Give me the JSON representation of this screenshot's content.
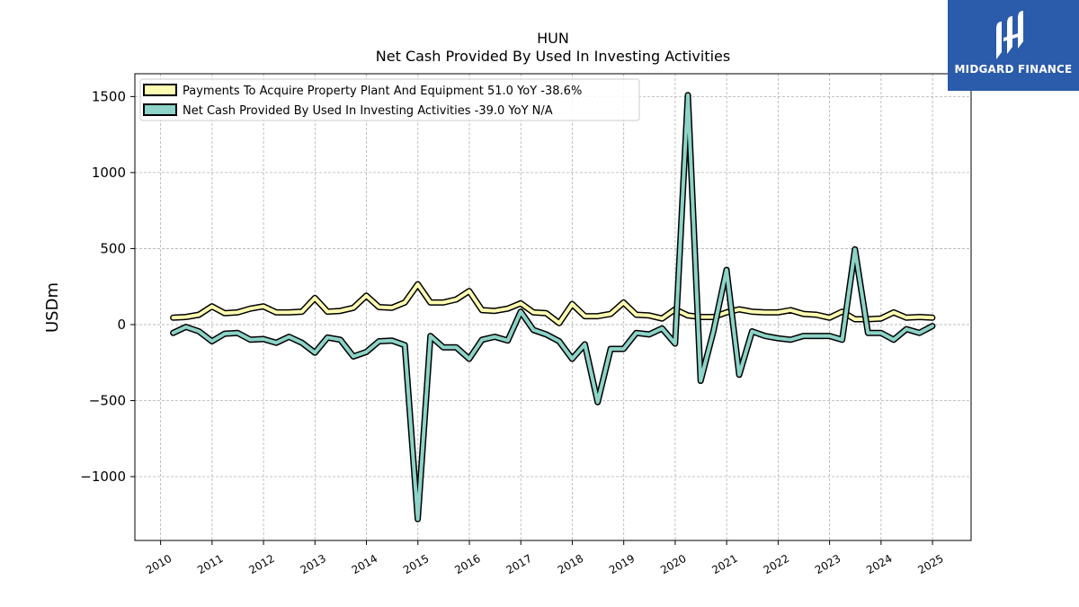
{
  "chart_data": {
    "type": "line",
    "title": "HUN",
    "subtitle": "Net Cash Provided By Used In Investing Activities",
    "xlabel": "",
    "ylabel": "USDm",
    "xlim": [
      2009.5,
      2025.75
    ],
    "ylim": [
      -1420,
      1650
    ],
    "yticks": [
      -1000,
      -500,
      0,
      500,
      1000,
      1500
    ],
    "ytick_labels": [
      "−1000",
      "−500",
      "0",
      "500",
      "1000",
      "1500"
    ],
    "xticks": [
      2010,
      2011,
      2012,
      2013,
      2014,
      2015,
      2016,
      2017,
      2018,
      2019,
      2020,
      2021,
      2022,
      2023,
      2024,
      2025
    ],
    "xtick_labels": [
      "2010",
      "2011",
      "2012",
      "2013",
      "2014",
      "2015",
      "2016",
      "2017",
      "2018",
      "2019",
      "2020",
      "2021",
      "2022",
      "2023",
      "2024",
      "2025"
    ],
    "grid": true,
    "legend_position": "top-left",
    "series": [
      {
        "name": "Payments To Acquire Property Plant And Equipment",
        "legend_label": "Payments To Acquire Property Plant And Equipment  51.0 YoY -38.6%",
        "color": "#ffffb3",
        "x": [
          "2010-03-31",
          "2010-06-30",
          "2010-09-30",
          "2010-12-31",
          "2011-03-31",
          "2011-06-30",
          "2011-09-30",
          "2011-12-31",
          "2012-03-31",
          "2012-06-30",
          "2012-09-30",
          "2012-12-31",
          "2013-03-31",
          "2013-06-30",
          "2013-09-30",
          "2013-12-31",
          "2014-03-31",
          "2014-06-30",
          "2014-09-30",
          "2014-12-31",
          "2015-03-31",
          "2015-06-30",
          "2015-09-30",
          "2015-12-31",
          "2016-03-31",
          "2016-06-30",
          "2016-09-30",
          "2016-12-31",
          "2017-03-31",
          "2017-06-30",
          "2017-09-30",
          "2017-12-31",
          "2018-03-31",
          "2018-06-30",
          "2018-09-30",
          "2018-12-31",
          "2019-03-31",
          "2019-06-30",
          "2019-09-30",
          "2019-12-31",
          "2020-03-31",
          "2020-06-30",
          "2020-09-30",
          "2020-12-31",
          "2021-03-31",
          "2021-06-30",
          "2021-09-30",
          "2021-12-31",
          "2022-03-31",
          "2022-06-30",
          "2022-09-30",
          "2022-12-31",
          "2023-03-31",
          "2023-06-30",
          "2023-09-30",
          "2023-12-31",
          "2024-03-31",
          "2024-06-30",
          "2024-09-30",
          "2024-12-31"
        ],
        "values": [
          45,
          50,
          65,
          120,
          75,
          80,
          105,
          120,
          80,
          80,
          85,
          175,
          85,
          90,
          110,
          190,
          115,
          110,
          145,
          265,
          145,
          145,
          165,
          220,
          95,
          90,
          105,
          140,
          80,
          75,
          10,
          135,
          55,
          55,
          70,
          145,
          65,
          60,
          40,
          100,
          60,
          50,
          50,
          80,
          100,
          85,
          80,
          80,
          95,
          70,
          65,
          45,
          85,
          35,
          35,
          40,
          80,
          45,
          50,
          45
        ]
      },
      {
        "name": "Net Cash Provided By Used In Investing Activities",
        "legend_label": "Net Cash Provided By Used In Investing Activities  -39.0 YoY N/A",
        "color": "#8dd3c7",
        "x": [
          "2010-03-31",
          "2010-06-30",
          "2010-09-30",
          "2010-12-31",
          "2011-03-31",
          "2011-06-30",
          "2011-09-30",
          "2011-12-31",
          "2012-03-31",
          "2012-06-30",
          "2012-09-30",
          "2012-12-31",
          "2013-03-31",
          "2013-06-30",
          "2013-09-30",
          "2013-12-31",
          "2014-03-31",
          "2014-06-30",
          "2014-09-30",
          "2014-12-31",
          "2015-03-31",
          "2015-06-30",
          "2015-09-30",
          "2015-12-31",
          "2016-03-31",
          "2016-06-30",
          "2016-09-30",
          "2016-12-31",
          "2017-03-31",
          "2017-06-30",
          "2017-09-30",
          "2017-12-31",
          "2018-03-31",
          "2018-06-30",
          "2018-09-30",
          "2018-12-31",
          "2019-03-31",
          "2019-06-30",
          "2019-09-30",
          "2019-12-31",
          "2020-03-31",
          "2020-06-30",
          "2020-09-30",
          "2020-12-31",
          "2021-03-31",
          "2021-06-30",
          "2021-09-30",
          "2021-12-31",
          "2022-03-31",
          "2022-06-30",
          "2022-09-30",
          "2022-12-31",
          "2023-03-31",
          "2023-06-30",
          "2023-09-30",
          "2023-12-31",
          "2024-03-31",
          "2024-06-30",
          "2024-09-30",
          "2024-12-31"
        ],
        "values": [
          -55,
          -15,
          -45,
          -110,
          -60,
          -55,
          -100,
          -95,
          -120,
          -80,
          -120,
          -185,
          -85,
          -100,
          -210,
          -180,
          -110,
          -105,
          -135,
          -1280,
          -75,
          -150,
          -150,
          -225,
          -100,
          -80,
          -105,
          85,
          -35,
          -65,
          -110,
          -225,
          -130,
          -510,
          -160,
          -160,
          -55,
          -65,
          -25,
          -125,
          1510,
          -370,
          -40,
          360,
          -330,
          -45,
          -75,
          -90,
          -100,
          -75,
          -75,
          -75,
          -100,
          495,
          -55,
          -55,
          -100,
          -30,
          -55,
          -10
        ]
      }
    ]
  },
  "logo": {
    "text": "MIDGARD FINANCE"
  }
}
